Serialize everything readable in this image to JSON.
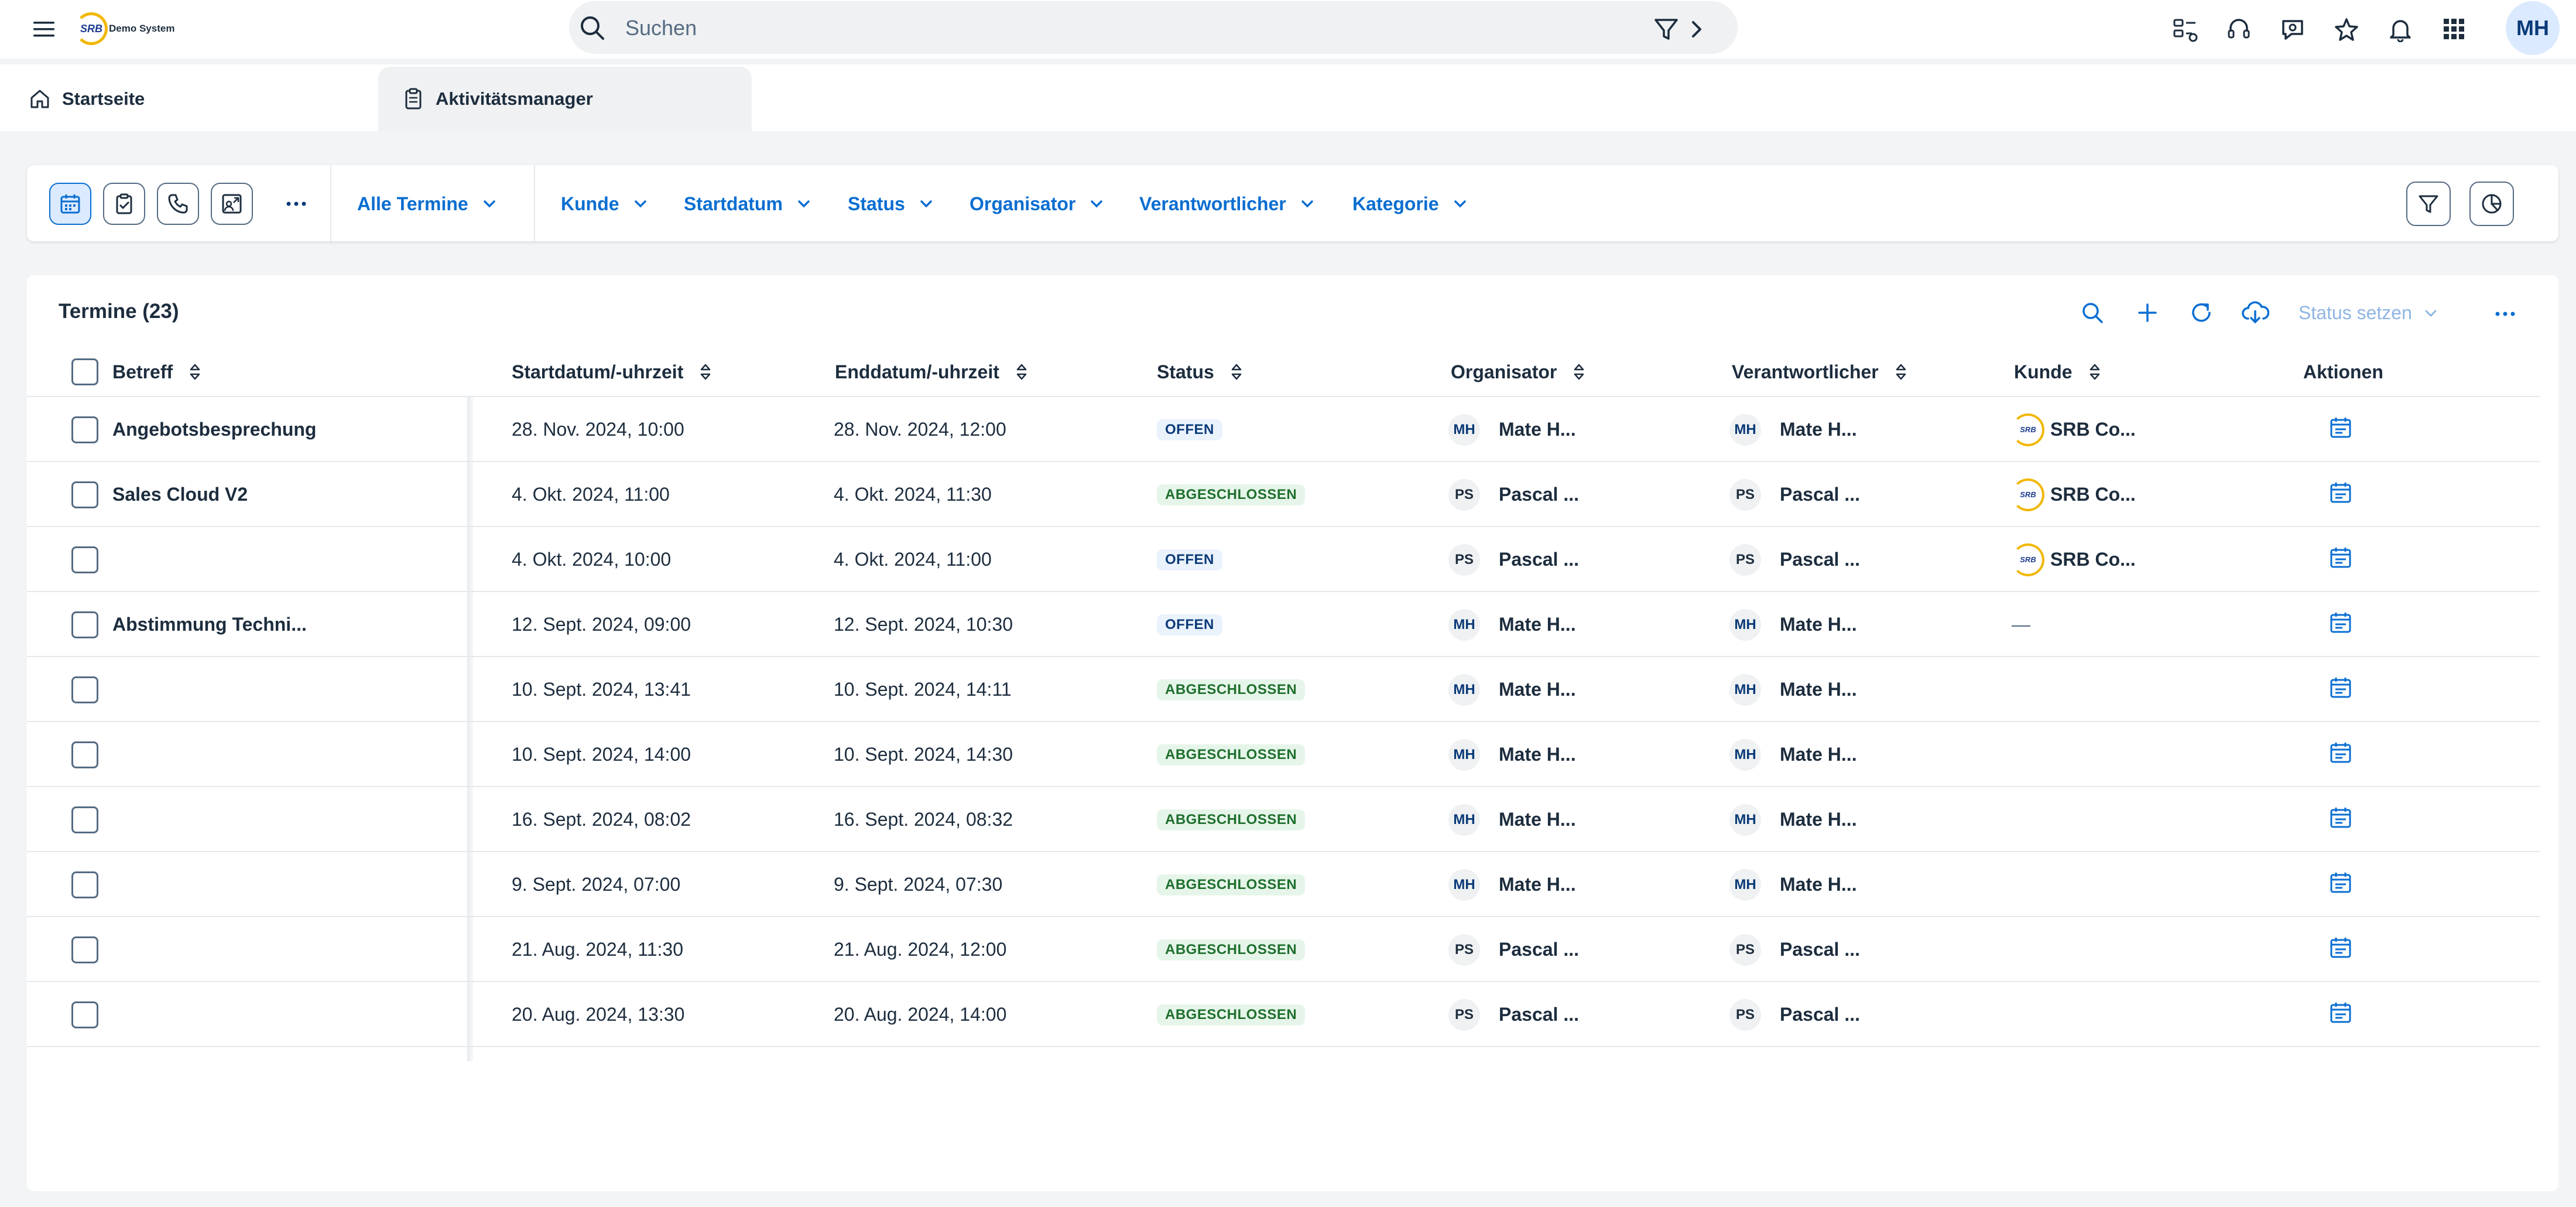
{
  "shell": {
    "logo_text": "SRB",
    "logo_caption": "Demo System",
    "search_placeholder": "Suchen",
    "user_initials": "MH",
    "icons": [
      "menu-icon",
      "search-icon",
      "filter-icon",
      "chevron-right-icon",
      "tasks-icon",
      "headset-icon",
      "feedback-icon",
      "star-icon",
      "bell-icon",
      "apps-grid-icon"
    ]
  },
  "tabs": [
    {
      "label": "Startseite",
      "icon": "home-icon"
    },
    {
      "label": "Aktivitätsmanager",
      "icon": "clipboard-icon",
      "active": true
    }
  ],
  "filterbar": {
    "type_buttons": [
      "calendar-icon",
      "task-icon",
      "phone-icon",
      "share-screen-icon"
    ],
    "view_selector": "Alle Termine",
    "filters": [
      "Kunde",
      "Startdatum",
      "Status",
      "Organisator",
      "Verantwortlicher",
      "Kategorie"
    ]
  },
  "table": {
    "title": "Termine (23)",
    "status_setzen": "Status setzen",
    "columns": [
      "Betreff",
      "Startdatum/-uhrzeit",
      "Enddatum/-uhrzeit",
      "Status",
      "Organisator",
      "Verantwortlicher",
      "Kunde",
      "Aktionen"
    ],
    "rows": [
      {
        "betreff": "Angebotsbesprechung",
        "start": "28. Nov. 2024, 10:00",
        "end": "28. Nov. 2024, 12:00",
        "status": "OFFEN",
        "org_init": "MH",
        "org": "Mate H...",
        "ver_init": "MH",
        "ver": "Mate H...",
        "kunde": "SRB Co...",
        "kunde_logo": "SRB"
      },
      {
        "betreff": "Sales Cloud V2",
        "start": "4. Okt. 2024, 11:00",
        "end": "4. Okt. 2024, 11:30",
        "status": "ABGESCHLOSSEN",
        "org_init": "PS",
        "org": "Pascal ...",
        "ver_init": "PS",
        "ver": "Pascal ...",
        "kunde": "SRB Co...",
        "kunde_logo": "SRB"
      },
      {
        "betreff": "",
        "start": "4. Okt. 2024, 10:00",
        "end": "4. Okt. 2024, 11:00",
        "status": "OFFEN",
        "org_init": "PS",
        "org": "Pascal ...",
        "ver_init": "PS",
        "ver": "Pascal ...",
        "kunde": "SRB Co...",
        "kunde_logo": "SRB"
      },
      {
        "betreff": "Abstimmung Techni...",
        "start": "12. Sept. 2024, 09:00",
        "end": "12. Sept. 2024, 10:30",
        "status": "OFFEN",
        "org_init": "MH",
        "org": "Mate H...",
        "ver_init": "MH",
        "ver": "Mate H...",
        "kunde": "—",
        "kunde_logo": ""
      },
      {
        "betreff": "",
        "start": "10. Sept. 2024, 13:41",
        "end": "10. Sept. 2024, 14:11",
        "status": "ABGESCHLOSSEN",
        "org_init": "MH",
        "org": "Mate H...",
        "ver_init": "MH",
        "ver": "Mate H...",
        "kunde": "",
        "kunde_logo": ""
      },
      {
        "betreff": "",
        "start": "10. Sept. 2024, 14:00",
        "end": "10. Sept. 2024, 14:30",
        "status": "ABGESCHLOSSEN",
        "org_init": "MH",
        "org": "Mate H...",
        "ver_init": "MH",
        "ver": "Mate H...",
        "kunde": "",
        "kunde_logo": ""
      },
      {
        "betreff": "",
        "start": "16. Sept. 2024, 08:02",
        "end": "16. Sept. 2024, 08:32",
        "status": "ABGESCHLOSSEN",
        "org_init": "MH",
        "org": "Mate H...",
        "ver_init": "MH",
        "ver": "Mate H...",
        "kunde": "",
        "kunde_logo": ""
      },
      {
        "betreff": "",
        "start": "9. Sept. 2024, 07:00",
        "end": "9. Sept. 2024, 07:30",
        "status": "ABGESCHLOSSEN",
        "org_init": "MH",
        "org": "Mate H...",
        "ver_init": "MH",
        "ver": "Mate H...",
        "kunde": "",
        "kunde_logo": ""
      },
      {
        "betreff": "",
        "start": "21. Aug. 2024, 11:30",
        "end": "21. Aug. 2024, 12:00",
        "status": "ABGESCHLOSSEN",
        "org_init": "PS",
        "org": "Pascal ...",
        "ver_init": "PS",
        "ver": "Pascal ...",
        "kunde": "",
        "kunde_logo": ""
      },
      {
        "betreff": "",
        "start": "20. Aug. 2024, 13:30",
        "end": "20. Aug. 2024, 14:00",
        "status": "ABGESCHLOSSEN",
        "org_init": "PS",
        "org": "Pascal ...",
        "ver_init": "PS",
        "ver": "Pascal ...",
        "kunde": "",
        "kunde_logo": ""
      }
    ]
  },
  "colors": {
    "accent": "#0a6ed1",
    "text": "#1d2d3e",
    "open_badge_bg": "#eaf2fc",
    "done_badge_bg": "#e6f5e9",
    "done_badge_text": "#1f6f2e"
  }
}
